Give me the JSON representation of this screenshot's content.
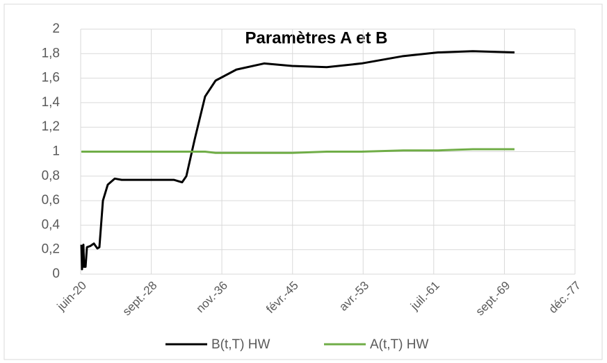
{
  "chart_data": {
    "type": "line",
    "title": "Paramètres A et B",
    "x": [
      2020.5,
      2020.58,
      2020.74,
      2020.82,
      2020.99,
      2021.15,
      2021.55,
      2021.96,
      2022.36,
      2022.6,
      2023.01,
      2023.57,
      2024.38,
      2025.19,
      2028.02,
      2031.25,
      2032.22,
      2032.71,
      2033.68,
      2034.89,
      2036.11,
      2038.53,
      2041.76,
      2045.0,
      2049.04,
      2053.08,
      2057.93,
      2061.98,
      2066.02,
      2070.87
    ],
    "series": [
      {
        "name": "B(t,T) HW",
        "color": "#000000",
        "values": [
          0.24,
          0.04,
          0.24,
          0.06,
          0.06,
          0.22,
          0.23,
          0.25,
          0.21,
          0.22,
          0.6,
          0.73,
          0.78,
          0.77,
          0.77,
          0.77,
          0.75,
          0.8,
          1.1,
          1.45,
          1.58,
          1.67,
          1.72,
          1.7,
          1.69,
          1.72,
          1.78,
          1.81,
          1.82,
          1.81
        ]
      },
      {
        "name": "A(t,T) HW",
        "color": "#70ad47",
        "values": [
          1,
          1,
          1,
          1,
          1,
          1,
          1,
          1,
          1,
          1,
          1,
          1,
          1,
          1,
          1,
          1,
          1,
          1,
          1,
          1,
          0.99,
          0.99,
          0.99,
          0.99,
          1,
          1,
          1.01,
          1.01,
          1.02,
          1.02
        ]
      }
    ],
    "xlim": [
      2020.42,
      2077.91
    ],
    "xticks": [
      {
        "value": 2020.42,
        "label": "juin-20"
      },
      {
        "value": 2028.63,
        "label": "sept.-28"
      },
      {
        "value": 2036.84,
        "label": "nov.-36"
      },
      {
        "value": 2045.06,
        "label": "févr.-45"
      },
      {
        "value": 2053.27,
        "label": "avr.-53"
      },
      {
        "value": 2061.48,
        "label": "juil.-61"
      },
      {
        "value": 2069.7,
        "label": "sept.-69"
      },
      {
        "value": 2077.91,
        "label": "déc.-77"
      }
    ],
    "ylim": [
      0,
      2
    ],
    "yticks": [
      0,
      {
        "value": 0.2,
        "label": "0,2"
      },
      {
        "value": 0.4,
        "label": "0,4"
      },
      {
        "value": 0.6,
        "label": "0,6"
      },
      {
        "value": 0.8,
        "label": "0,8"
      },
      1,
      {
        "value": 1.2,
        "label": "1,2"
      },
      {
        "value": 1.4,
        "label": "1,4"
      },
      {
        "value": 1.6,
        "label": "1,6"
      },
      {
        "value": 1.8,
        "label": "1,8"
      },
      2
    ],
    "grid": true,
    "legend": "bottom"
  }
}
